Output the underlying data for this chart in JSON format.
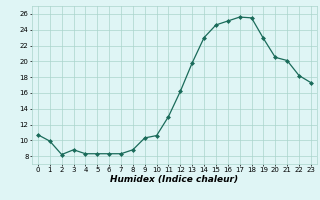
{
  "x": [
    0,
    1,
    2,
    3,
    4,
    5,
    6,
    7,
    8,
    9,
    10,
    11,
    12,
    13,
    14,
    15,
    16,
    17,
    18,
    19,
    20,
    21,
    22,
    23
  ],
  "y": [
    10.7,
    9.9,
    8.2,
    8.8,
    8.3,
    8.3,
    8.3,
    8.3,
    8.8,
    10.3,
    10.6,
    13.0,
    16.2,
    19.8,
    23.0,
    24.6,
    25.1,
    25.6,
    25.5,
    22.9,
    20.5,
    20.1,
    18.2,
    17.3
  ],
  "line_color": "#1a6b5a",
  "marker": "D",
  "marker_size": 2.0,
  "linewidth": 0.9,
  "xlabel": "Humidex (Indice chaleur)",
  "xlim": [
    -0.5,
    23.5
  ],
  "ylim": [
    7,
    27
  ],
  "yticks": [
    8,
    10,
    12,
    14,
    16,
    18,
    20,
    22,
    24,
    26
  ],
  "xticks": [
    0,
    1,
    2,
    3,
    4,
    5,
    6,
    7,
    8,
    9,
    10,
    11,
    12,
    13,
    14,
    15,
    16,
    17,
    18,
    19,
    20,
    21,
    22,
    23
  ],
  "bg_color": "#dff5f5",
  "grid_color": "#aad4cc",
  "label_fontsize": 6.5,
  "tick_fontsize": 5.0
}
